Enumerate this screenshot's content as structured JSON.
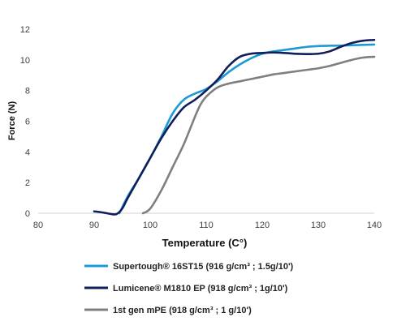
{
  "chart_data": {
    "type": "line",
    "title": "",
    "xlabel": "Temperature (C°)",
    "ylabel": "Force (N)",
    "xlim": [
      80,
      140
    ],
    "ylim": [
      0,
      12
    ],
    "xticks": [
      "80",
      "90",
      "100",
      "110",
      "120",
      "130",
      "140"
    ],
    "yticks": [
      "0",
      "2",
      "4",
      "6",
      "8",
      "10",
      "12"
    ],
    "grid": false,
    "legend_position": "bottom",
    "series": [
      {
        "name": "Supertough® 16ST15 (916 g/cm³ ; 1.5g/10')",
        "color": "#1b9ad6",
        "x": [
          94.5,
          96,
          98,
          100,
          102,
          104,
          106,
          108,
          110,
          112,
          114,
          116,
          118,
          120,
          122,
          124,
          126,
          128,
          130,
          132,
          134,
          136,
          138,
          140
        ],
        "y": [
          0,
          1.1,
          2.3,
          3.6,
          5.0,
          6.5,
          7.4,
          7.8,
          8.1,
          8.6,
          9.2,
          9.7,
          10.1,
          10.4,
          10.55,
          10.65,
          10.75,
          10.85,
          10.9,
          10.92,
          10.93,
          10.95,
          10.98,
          11.0
        ]
      },
      {
        "name": "Lumicene® M1810 EP (918 g/cm³ ; 1g/10')",
        "color": "#101e5a",
        "x": [
          90,
          91,
          92,
          93,
          94,
          95,
          96,
          98,
          100,
          102,
          104,
          106,
          108,
          110,
          112,
          114,
          116,
          118,
          120,
          122,
          124,
          126,
          128,
          130,
          132,
          134,
          136,
          138,
          140
        ],
        "y": [
          0.12,
          0.08,
          0.02,
          -0.05,
          -0.05,
          0.3,
          1.0,
          2.3,
          3.6,
          4.9,
          6.0,
          6.9,
          7.4,
          8.0,
          8.7,
          9.6,
          10.2,
          10.4,
          10.45,
          10.48,
          10.45,
          10.4,
          10.38,
          10.4,
          10.55,
          10.85,
          11.1,
          11.25,
          11.3
        ]
      },
      {
        "name": "1st gen mPE  (918 g/cm³ ; 1 g/10')",
        "color": "#7f7f7f",
        "x": [
          98.7,
          100,
          102,
          104,
          106,
          108,
          109,
          110,
          112,
          114,
          116,
          118,
          120,
          122,
          124,
          126,
          128,
          130,
          132,
          134,
          136,
          138,
          140
        ],
        "y": [
          0,
          0.3,
          1.5,
          3.0,
          4.5,
          6.3,
          7.1,
          7.6,
          8.2,
          8.45,
          8.6,
          8.75,
          8.9,
          9.05,
          9.15,
          9.25,
          9.35,
          9.45,
          9.6,
          9.8,
          10.0,
          10.15,
          10.2
        ]
      }
    ]
  }
}
